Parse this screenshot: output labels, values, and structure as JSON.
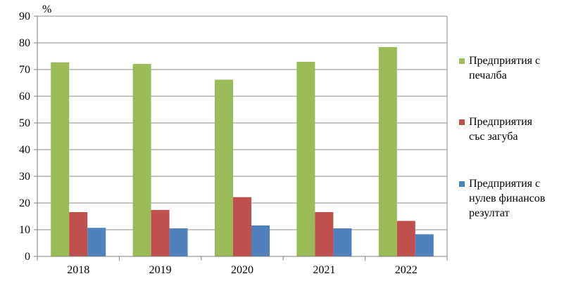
{
  "chart_data": {
    "type": "bar",
    "title": "",
    "xlabel": "",
    "ylabel": "",
    "unit_label": "%",
    "categories": [
      "2018",
      "2019",
      "2020",
      "2021",
      "2022"
    ],
    "ylim": [
      0,
      90
    ],
    "yticks": [
      "0",
      "10",
      "20",
      "30",
      "40",
      "50",
      "60",
      "70",
      "80",
      "90"
    ],
    "grid": true,
    "legend_position": "right",
    "series": [
      {
        "name": "Предприятия с печалба",
        "legend_lines": [
          "Предприятия  с",
          "печалба"
        ],
        "color": "#9bbb59",
        "values": [
          72.7,
          72.1,
          66.2,
          72.9,
          78.4
        ]
      },
      {
        "name": "Предприятия със загуба",
        "legend_lines": [
          "Предприятия",
          "със загуба"
        ],
        "color": "#c0504d",
        "values": [
          16.6,
          17.4,
          22.2,
          16.6,
          13.3
        ]
      },
      {
        "name": "Предприятия с нулев финансов резултат",
        "legend_lines": [
          "Предприятия  с",
          "нулев финансов",
          "резултат"
        ],
        "color": "#4f81bd",
        "values": [
          10.7,
          10.5,
          11.6,
          10.5,
          8.3
        ]
      }
    ]
  }
}
